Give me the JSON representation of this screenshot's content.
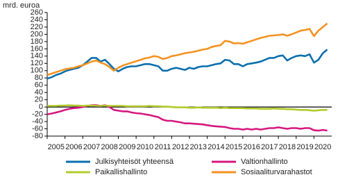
{
  "chart_data": {
    "type": "line",
    "y_label": "mrd. euroa",
    "x": [
      2005,
      2005.25,
      2005.5,
      2005.75,
      2006,
      2006.25,
      2006.5,
      2006.75,
      2007,
      2007.25,
      2007.5,
      2007.75,
      2008,
      2008.25,
      2008.5,
      2008.75,
      2009,
      2009.25,
      2009.5,
      2009.75,
      2010,
      2010.25,
      2010.5,
      2010.75,
      2011,
      2011.25,
      2011.5,
      2011.75,
      2012,
      2012.25,
      2012.5,
      2012.75,
      2013,
      2013.25,
      2013.5,
      2013.75,
      2014,
      2014.25,
      2014.5,
      2014.75,
      2015,
      2015.25,
      2015.5,
      2015.75,
      2016,
      2016.25,
      2016.5,
      2016.75,
      2017,
      2017.25,
      2017.5,
      2017.75,
      2018,
      2018.25,
      2018.5,
      2018.75,
      2019,
      2019.25,
      2019.5,
      2019.75,
      2020,
      2020.25,
      2020.5,
      2020.75
    ],
    "series": [
      {
        "name": "Julkisyhteisöt yhteensä",
        "color": "#0a6fad",
        "values": [
          78,
          82,
          88,
          92,
          98,
          102,
          105,
          108,
          115,
          125,
          135,
          135,
          125,
          130,
          118,
          105,
          98,
          105,
          110,
          112,
          112,
          115,
          118,
          118,
          115,
          112,
          100,
          100,
          105,
          108,
          105,
          102,
          108,
          105,
          110,
          112,
          112,
          115,
          118,
          120,
          130,
          128,
          118,
          118,
          112,
          118,
          120,
          122,
          125,
          130,
          135,
          135,
          140,
          142,
          128,
          135,
          140,
          142,
          140,
          145,
          122,
          130,
          148,
          158
        ]
      },
      {
        "name": "Valtionhallinto",
        "color": "#d6177f",
        "values": [
          -20,
          -18,
          -15,
          -12,
          -8,
          -5,
          -3,
          -2,
          0,
          3,
          5,
          5,
          3,
          5,
          0,
          -8,
          -10,
          -12,
          -12,
          -15,
          -17,
          -18,
          -20,
          -22,
          -25,
          -28,
          -35,
          -38,
          -38,
          -40,
          -42,
          -45,
          -45,
          -46,
          -47,
          -48,
          -50,
          -52,
          -53,
          -54,
          -55,
          -58,
          -60,
          -60,
          -62,
          -60,
          -62,
          -60,
          -62,
          -60,
          -58,
          -58,
          -56,
          -58,
          -60,
          -58,
          -58,
          -60,
          -58,
          -58,
          -64,
          -65,
          -63,
          -65
        ]
      },
      {
        "name": "Paikallishallinto",
        "color": "#b2cb2b",
        "values": [
          3,
          3,
          3,
          4,
          4,
          5,
          4,
          4,
          3,
          4,
          4,
          3,
          3,
          4,
          3,
          3,
          3,
          3,
          2,
          2,
          2,
          2,
          2,
          3,
          2,
          2,
          1,
          1,
          0,
          -1,
          -1,
          -1,
          -2,
          -2,
          -1,
          -2,
          -2,
          -2,
          -2,
          -3,
          -2,
          -3,
          -3,
          -3,
          -3,
          -4,
          -4,
          -4,
          -5,
          -5,
          -5,
          -4,
          -5,
          -5,
          -6,
          -6,
          -7,
          -8,
          -8,
          -9,
          -10,
          -9,
          -8,
          -8
        ]
      },
      {
        "name": "Sosiaaliturvarahastot",
        "color": "#f39220",
        "values": [
          88,
          92,
          96,
          100,
          104,
          106,
          108,
          112,
          115,
          120,
          125,
          128,
          122,
          118,
          110,
          100,
          108,
          114,
          118,
          122,
          126,
          130,
          134,
          136,
          140,
          138,
          132,
          135,
          140,
          142,
          145,
          148,
          150,
          152,
          155,
          158,
          160,
          165,
          168,
          170,
          182,
          180,
          175,
          176,
          174,
          178,
          182,
          186,
          190,
          193,
          196,
          197,
          198,
          200,
          196,
          200,
          205,
          210,
          212,
          215,
          195,
          210,
          220,
          230
        ]
      }
    ],
    "xlim": [
      2005,
      2021
    ],
    "xticks": [
      2005,
      2006,
      2007,
      2008,
      2009,
      2010,
      2011,
      2012,
      2013,
      2014,
      2015,
      2016,
      2017,
      2018,
      2019,
      2020
    ],
    "ylim": [
      -80,
      260
    ],
    "yticks": [
      -80,
      -60,
      -40,
      -20,
      0,
      20,
      40,
      60,
      80,
      100,
      120,
      140,
      160,
      180,
      200,
      220,
      240,
      260
    ],
    "grid": false
  }
}
